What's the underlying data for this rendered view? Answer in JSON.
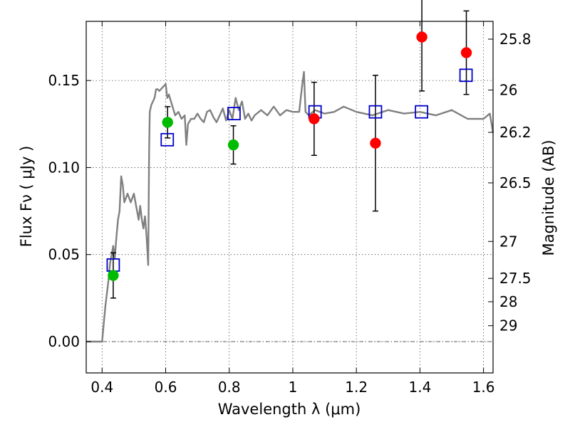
{
  "chart_data": {
    "type": "scatter",
    "xlabel": "Wavelength  λ (μm)",
    "ylabel": "Flux  Fν  ( μJy )",
    "ylabel_right": "Magnitude (AB)",
    "xlim": [
      0.35,
      1.63
    ],
    "ylim": [
      -0.018,
      0.184
    ],
    "grid": true,
    "x_ticks": [
      0.4,
      0.6,
      0.8,
      1.0,
      1.2,
      1.4,
      1.6
    ],
    "x_tick_labels": [
      "0.4",
      "0.6",
      "0.8",
      "1",
      "1.2",
      "1.4",
      "1.6"
    ],
    "y_ticks": [
      0.0,
      0.05,
      0.1,
      0.15
    ],
    "y_tick_labels": [
      "0.00",
      "0.05",
      "0.10",
      "0.15"
    ],
    "right_ticks": [
      {
        "label": "25.8",
        "mag": 25.8
      },
      {
        "label": "26",
        "mag": 26.0
      },
      {
        "label": "26.2",
        "mag": 26.2
      },
      {
        "label": "26.5",
        "mag": 26.5
      },
      {
        "label": "27",
        "mag": 27.0
      },
      {
        "label": "27.5",
        "mag": 27.5
      },
      {
        "label": "28",
        "mag": 28.0
      },
      {
        "label": "29",
        "mag": 29.0
      }
    ],
    "model_spectrum": {
      "color": "#808080",
      "x": [
        0.35,
        0.4,
        0.41,
        0.42,
        0.425,
        0.43,
        0.435,
        0.44,
        0.445,
        0.45,
        0.455,
        0.46,
        0.465,
        0.47,
        0.48,
        0.49,
        0.5,
        0.51,
        0.515,
        0.52,
        0.525,
        0.53,
        0.535,
        0.54,
        0.545,
        0.548,
        0.55,
        0.555,
        0.56,
        0.565,
        0.57,
        0.575,
        0.58,
        0.59,
        0.6,
        0.605,
        0.61,
        0.62,
        0.63,
        0.64,
        0.65,
        0.66,
        0.665,
        0.67,
        0.68,
        0.69,
        0.7,
        0.71,
        0.72,
        0.73,
        0.74,
        0.75,
        0.76,
        0.77,
        0.78,
        0.79,
        0.8,
        0.81,
        0.82,
        0.83,
        0.84,
        0.85,
        0.86,
        0.87,
        0.88,
        0.9,
        0.92,
        0.94,
        0.96,
        0.98,
        1.0,
        1.02,
        1.03,
        1.035,
        1.04,
        1.05,
        1.07,
        1.1,
        1.13,
        1.16,
        1.2,
        1.25,
        1.3,
        1.35,
        1.4,
        1.45,
        1.5,
        1.55,
        1.6,
        1.62,
        1.63
      ],
      "y": [
        0.0,
        0.0,
        0.02,
        0.035,
        0.045,
        0.05,
        0.055,
        0.048,
        0.06,
        0.07,
        0.075,
        0.095,
        0.09,
        0.08,
        0.085,
        0.08,
        0.085,
        0.075,
        0.07,
        0.078,
        0.07,
        0.065,
        0.072,
        0.06,
        0.044,
        0.11,
        0.132,
        0.136,
        0.138,
        0.14,
        0.145,
        0.145,
        0.144,
        0.146,
        0.148,
        0.14,
        0.142,
        0.136,
        0.13,
        0.132,
        0.128,
        0.13,
        0.113,
        0.125,
        0.128,
        0.128,
        0.131,
        0.128,
        0.126,
        0.132,
        0.133,
        0.129,
        0.126,
        0.13,
        0.134,
        0.127,
        0.133,
        0.128,
        0.14,
        0.133,
        0.138,
        0.128,
        0.131,
        0.127,
        0.13,
        0.133,
        0.13,
        0.135,
        0.13,
        0.133,
        0.132,
        0.132,
        0.148,
        0.155,
        0.132,
        0.13,
        0.133,
        0.131,
        0.132,
        0.135,
        0.132,
        0.13,
        0.133,
        0.131,
        0.132,
        0.13,
        0.133,
        0.128,
        0.128,
        0.131,
        0.12
      ]
    },
    "model_photometry": {
      "marker": "open-square",
      "color": "#0000cc",
      "x": [
        0.435,
        0.605,
        0.815,
        1.07,
        1.26,
        1.405,
        1.545
      ],
      "y": [
        0.044,
        0.116,
        0.131,
        0.132,
        0.132,
        0.132,
        0.153
      ]
    },
    "observed_green": {
      "marker": "filled-circle",
      "color": "#00bb00",
      "x": [
        0.435,
        0.606,
        0.813
      ],
      "y": [
        0.038,
        0.126,
        0.113
      ],
      "err": [
        0.013,
        0.009,
        0.011
      ]
    },
    "observed_red": {
      "marker": "filled-circle",
      "color": "#ff0000",
      "x": [
        1.067,
        1.26,
        1.406,
        1.546
      ],
      "y": [
        0.128,
        0.114,
        0.175,
        0.166
      ],
      "err": [
        0.021,
        0.039,
        0.031,
        0.024
      ]
    }
  }
}
